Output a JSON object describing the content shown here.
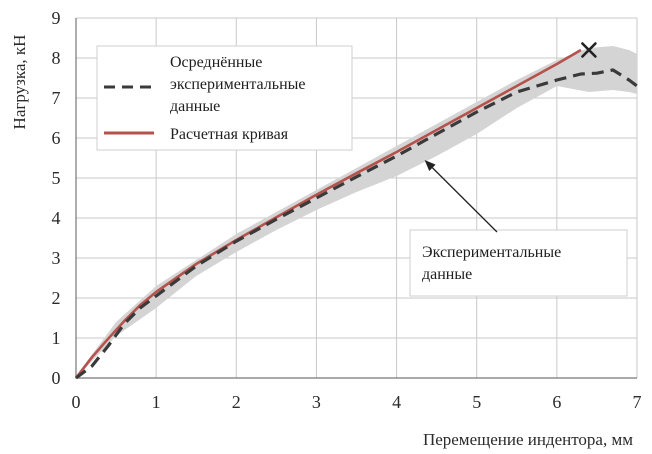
{
  "chart_data": {
    "type": "line",
    "xlabel": "Перемещение индентора, мм",
    "ylabel": "Нагрузка, кН",
    "xlim": [
      0,
      7
    ],
    "ylim": [
      0,
      9
    ],
    "x_ticks": [
      "0",
      "1",
      "2",
      "3",
      "4",
      "5",
      "6",
      "7"
    ],
    "y_ticks": [
      "0",
      "1",
      "2",
      "3",
      "4",
      "5",
      "6",
      "7",
      "8",
      "9"
    ],
    "grid": true,
    "legend_position": "top-left",
    "series": [
      {
        "name": "Осреднённые экспериментальные данные",
        "style": "dashed",
        "color": "#3a3a3a",
        "x": [
          0,
          0.2,
          0.4,
          0.6,
          0.8,
          1.0,
          1.5,
          2.0,
          2.5,
          3.0,
          3.5,
          4.0,
          4.5,
          5.0,
          5.5,
          6.0,
          6.3,
          6.5,
          6.7,
          6.9,
          7.0
        ],
        "y": [
          0,
          0.3,
          0.8,
          1.35,
          1.75,
          2.05,
          2.8,
          3.42,
          3.97,
          4.5,
          5.03,
          5.55,
          6.1,
          6.65,
          7.15,
          7.45,
          7.6,
          7.62,
          7.7,
          7.45,
          7.3
        ]
      },
      {
        "name": "Расчетная кривая",
        "style": "solid",
        "color": "#b5524c",
        "x": [
          0,
          0.2,
          0.4,
          0.6,
          0.8,
          1.0,
          1.5,
          2.0,
          2.5,
          3.0,
          3.5,
          4.0,
          4.5,
          5.0,
          5.5,
          6.0,
          6.3
        ],
        "y": [
          0,
          0.52,
          0.98,
          1.42,
          1.82,
          2.15,
          2.85,
          3.45,
          4.02,
          4.58,
          5.12,
          5.65,
          6.2,
          6.75,
          7.3,
          7.85,
          8.2
        ]
      }
    ],
    "band": {
      "name": "Экспериментальные данные",
      "color": "#d4d4d4",
      "x": [
        0,
        0.5,
        1.0,
        1.5,
        2.0,
        2.5,
        3.0,
        3.5,
        4.0,
        4.5,
        5.0,
        5.5,
        6.0,
        6.4,
        6.7,
        6.9,
        7.0
      ],
      "upper": [
        0.05,
        1.4,
        2.3,
        2.95,
        3.6,
        4.15,
        4.7,
        5.25,
        5.8,
        6.35,
        6.9,
        7.45,
        7.95,
        8.25,
        8.3,
        8.2,
        8.1
      ],
      "lower": [
        0,
        1.05,
        1.75,
        2.55,
        3.15,
        3.7,
        4.2,
        4.65,
        5.05,
        5.55,
        6.1,
        6.75,
        7.3,
        7.15,
        7.2,
        7.15,
        7.1
      ]
    },
    "failure_marker": {
      "x": 6.4,
      "y": 8.2,
      "symbol": "×"
    },
    "annotation": {
      "text_lines": [
        "Экспериментальные",
        "данные"
      ],
      "arrow_target": {
        "x": 4.35,
        "y": 5.45
      }
    }
  },
  "legend": {
    "dashed_lines": [
      "Осреднённые",
      "экспериментальные",
      "данные"
    ],
    "solid_label": "Расчетная кривая"
  }
}
